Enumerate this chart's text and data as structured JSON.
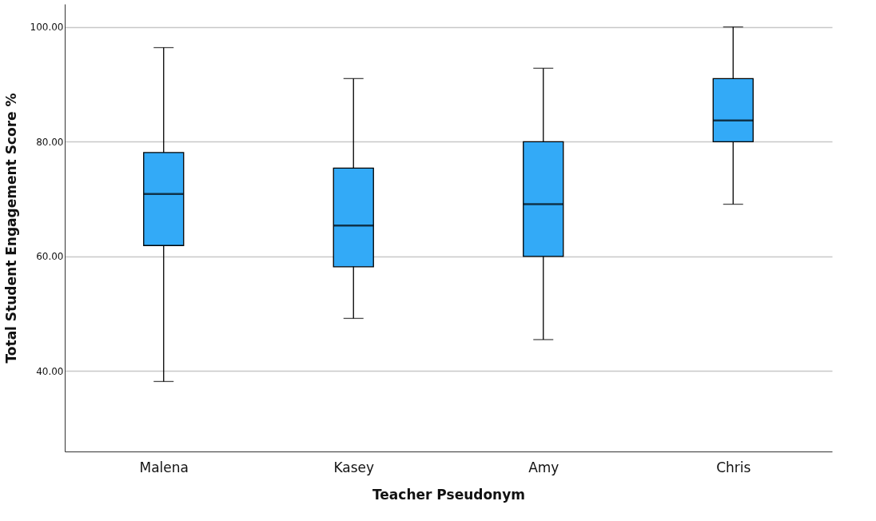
{
  "chart_data": {
    "type": "box",
    "xlabel": "Teacher Pseudonym",
    "ylabel": "Total Student Engagement Score %",
    "categories": [
      "Malena",
      "Kasey",
      "Amy",
      "Chris"
    ],
    "series": [
      {
        "color": "#33aaf7",
        "boxes": [
          {
            "low": 38.2,
            "q1": 61.9,
            "median": 70.9,
            "q3": 78.1,
            "high": 96.4
          },
          {
            "low": 49.2,
            "q1": 58.2,
            "median": 65.4,
            "q3": 75.4,
            "high": 91.0
          },
          {
            "low": 45.5,
            "q1": 60.0,
            "median": 69.1,
            "q3": 80.0,
            "high": 92.8
          },
          {
            "low": 69.1,
            "q1": 80.0,
            "median": 83.7,
            "q3": 91.0,
            "high": 100.0
          }
        ]
      }
    ],
    "ylim": [
      26,
      104
    ],
    "yticks": [
      {
        "value": 40,
        "label": "40.00"
      },
      {
        "value": 60,
        "label": "60.00"
      },
      {
        "value": 80,
        "label": "80.00"
      },
      {
        "value": 100,
        "label": "100.00"
      }
    ],
    "grid": "y"
  }
}
